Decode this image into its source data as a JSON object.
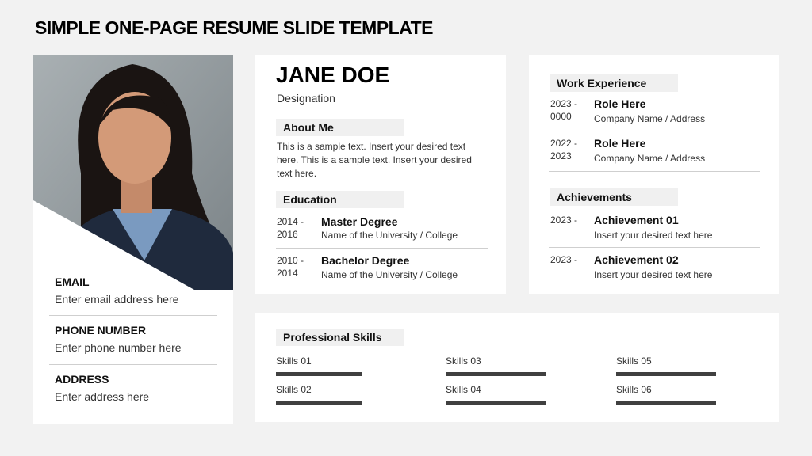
{
  "title": "SIMPLE ONE-PAGE RESUME SLIDE TEMPLATE",
  "contact": {
    "email_label": "EMAIL",
    "email": "Enter email address here",
    "phone_label": "PHONE NUMBER",
    "phone": "Enter phone number here",
    "address_label": "ADDRESS",
    "address": "Enter address here"
  },
  "profile": {
    "name": "JANE DOE",
    "designation": "Designation",
    "about_title": "About Me",
    "about_text": "This is a sample text.  Insert your desired text here. This is a sample text.  Insert your desired text here.",
    "education_title": "Education",
    "education": [
      {
        "years": "2014 -\n2016",
        "degree": "Master Degree",
        "school": "Name of the University / College"
      },
      {
        "years": "2010 -\n2014",
        "degree": "Bachelor Degree",
        "school": "Name of the University / College"
      }
    ]
  },
  "work": {
    "title": "Work Experience",
    "items": [
      {
        "years": "2023 -\n0000",
        "role": "Role Here",
        "company": "Company Name / Address"
      },
      {
        "years": "2022 -\n2023",
        "role": "Role Here",
        "company": "Company Name / Address"
      }
    ]
  },
  "achievements": {
    "title": "Achievements",
    "items": [
      {
        "year": "2023 -",
        "title": "Achievement 01",
        "text": "Insert your desired text here"
      },
      {
        "year": "2023 -",
        "title": "Achievement 02",
        "text": "Insert your desired text here"
      }
    ]
  },
  "skills": {
    "title": "Professional Skills",
    "items": [
      {
        "label": "Skills 01",
        "level": 0.86
      },
      {
        "label": "Skills 02",
        "level": 0.86
      },
      {
        "label": "Skills 03",
        "level": 1.0
      },
      {
        "label": "Skills 04",
        "level": 1.0
      },
      {
        "label": "Skills 05",
        "level": 1.0
      },
      {
        "label": "Skills 06",
        "level": 1.0
      }
    ],
    "bar_color": "#404040"
  }
}
